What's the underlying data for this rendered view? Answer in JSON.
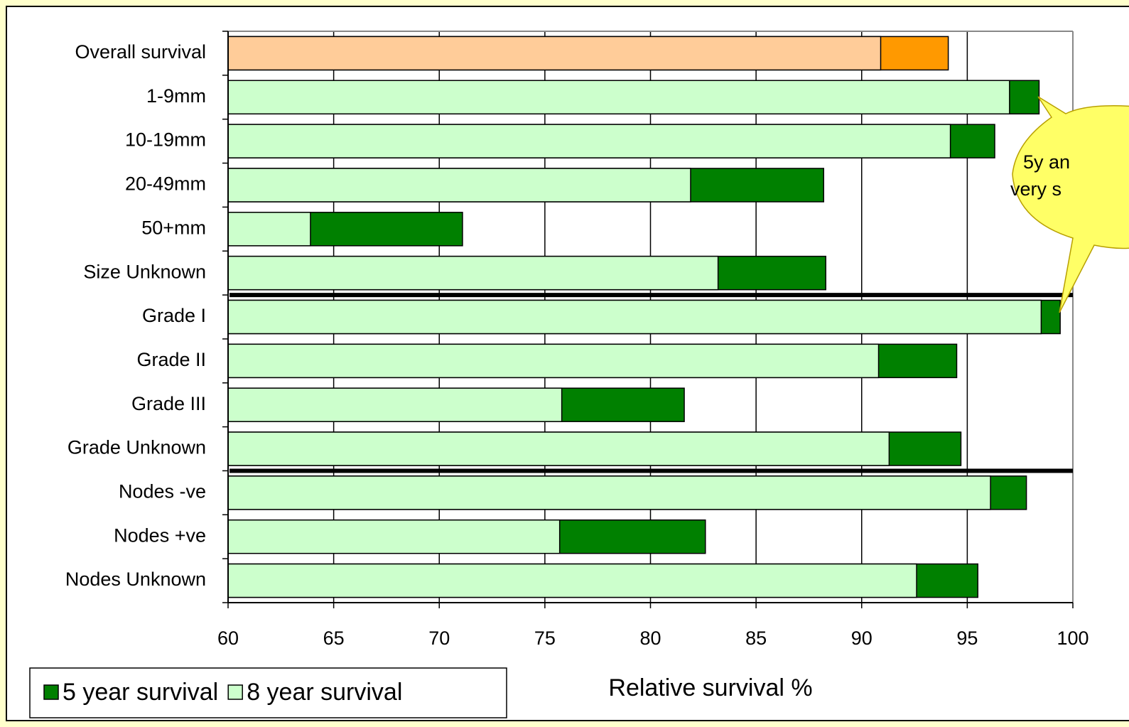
{
  "chart_data": {
    "type": "bar",
    "orientation": "horizontal",
    "overlap": true,
    "x_label": "Relative survival %",
    "categories": [
      "Overall survival",
      "1-9mm",
      "10-19mm",
      "20-49mm",
      "50+mm",
      "Size Unknown",
      "Grade I",
      "Grade II",
      "Grade III",
      "Grade Unknown",
      "Nodes -ve",
      "Nodes +ve",
      "Nodes Unknown"
    ],
    "series": [
      {
        "name": "5 year survival",
        "color": "#008000",
        "point_colors": [
          "#ff9900",
          "#008000",
          "#008000",
          "#008000",
          "#008000",
          "#008000",
          "#008000",
          "#008000",
          "#008000",
          "#008000",
          "#008000",
          "#008000",
          "#008000"
        ],
        "values": [
          94.1,
          98.4,
          96.3,
          88.2,
          71.1,
          88.3,
          99.4,
          94.5,
          81.6,
          94.7,
          97.8,
          82.6,
          95.5
        ]
      },
      {
        "name": "8 year survival",
        "color": "#ccffcc",
        "point_colors": [
          "#ffcc99",
          "#ccffcc",
          "#ccffcc",
          "#ccffcc",
          "#ccffcc",
          "#ccffcc",
          "#ccffcc",
          "#ccffcc",
          "#ccffcc",
          "#ccffcc",
          "#ccffcc",
          "#ccffcc",
          "#ccffcc"
        ],
        "values": [
          90.9,
          97.0,
          94.2,
          81.9,
          63.9,
          83.2,
          98.5,
          90.8,
          75.8,
          91.3,
          96.1,
          75.7,
          92.6
        ]
      }
    ],
    "xlim": [
      60,
      100
    ],
    "xticks": [
      60,
      65,
      70,
      75,
      80,
      85,
      90,
      95,
      100
    ],
    "grid": true,
    "legend": "bottom-left",
    "annotation": [
      "5y an",
      "very s"
    ]
  }
}
